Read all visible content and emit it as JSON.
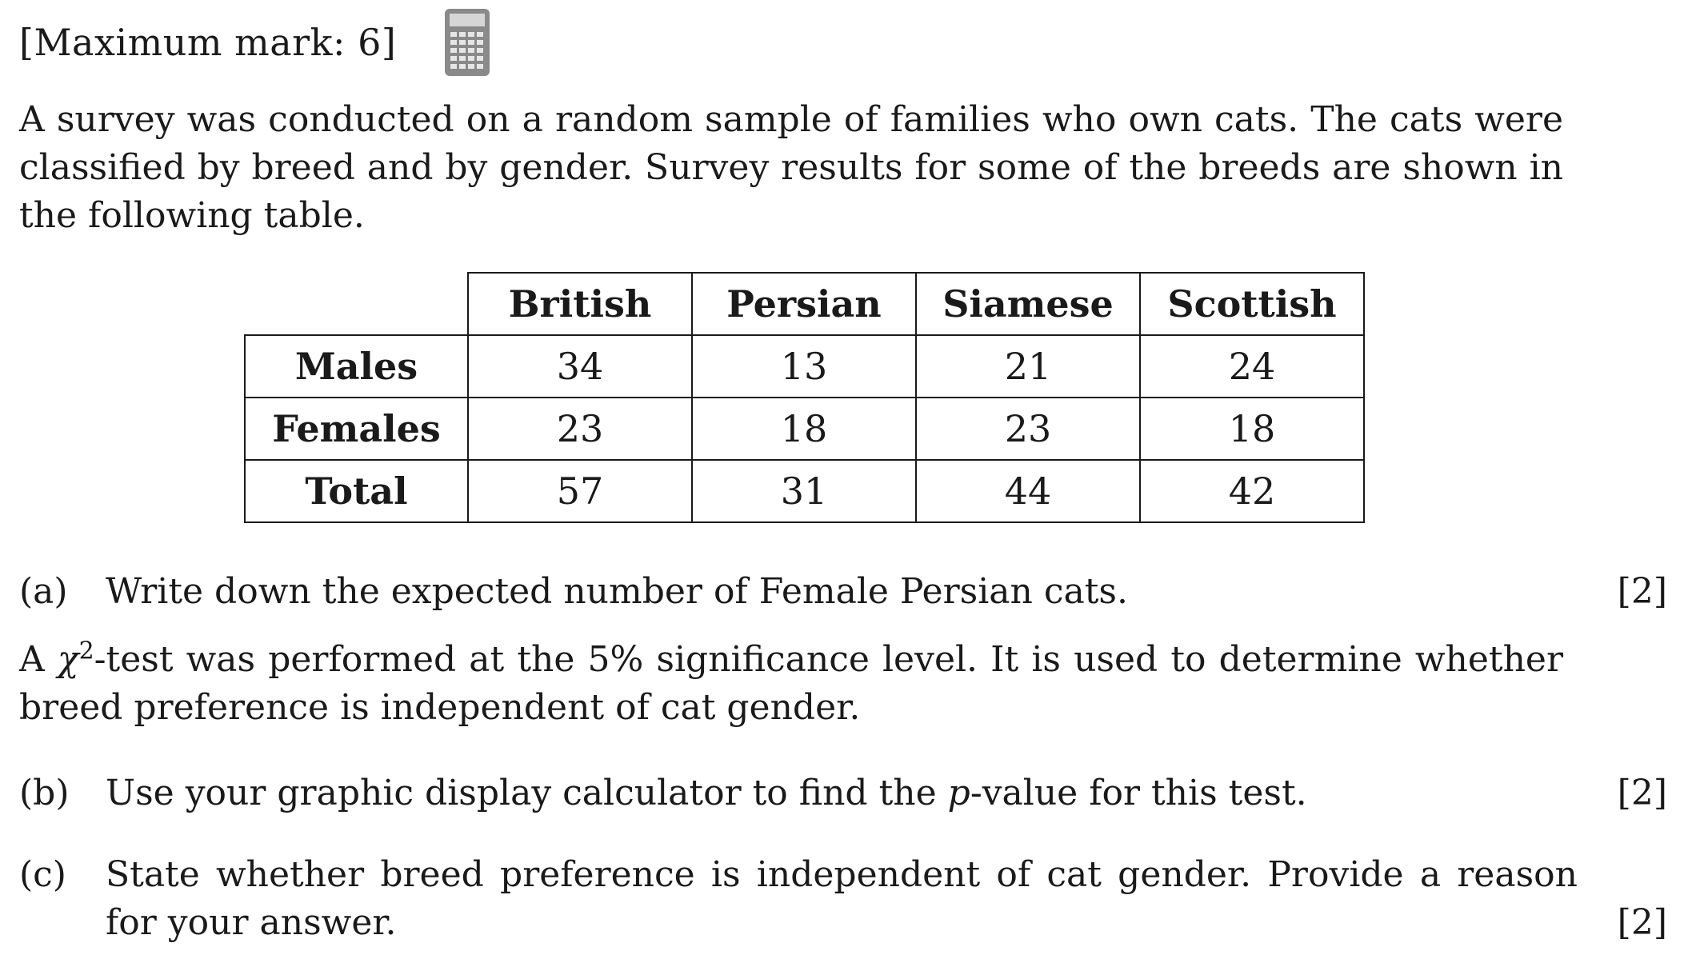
{
  "header": {
    "max_mark": "[Maximum mark: 6]"
  },
  "icons": {
    "calculator": "calculator-icon"
  },
  "intro": "A survey was conducted on a random sample of families who own cats. The cats were classified by breed and by gender. Survey results for some of the breeds are shown in the following table.",
  "table": {
    "columns": [
      "British",
      "Persian",
      "Siamese",
      "Scottish"
    ],
    "rows": [
      {
        "label": "Males",
        "values": [
          "34",
          "13",
          "21",
          "24"
        ]
      },
      {
        "label": "Females",
        "values": [
          "23",
          "18",
          "23",
          "18"
        ]
      },
      {
        "label": "Total",
        "values": [
          "57",
          "31",
          "44",
          "42"
        ]
      }
    ]
  },
  "questions": {
    "a": {
      "label": "(a)",
      "text": "Write down the expected number of Female Persian cats.",
      "marks": "[2]"
    },
    "b": {
      "label": "(b)",
      "text_before": "Use your graphic display calculator to find the ",
      "p": "p",
      "text_after": "-value for this test.",
      "marks": "[2]"
    },
    "c": {
      "label": "(c)",
      "text": "State whether breed preference is independent of cat gender. Provide a reason for your answer.",
      "marks": "[2]"
    }
  },
  "chi_para": {
    "prefix": "A ",
    "chi": "χ",
    "sup": "2",
    "rest": "-test was performed at the 5% significance level. It is used to determine whether breed preference is independent of cat gender."
  }
}
